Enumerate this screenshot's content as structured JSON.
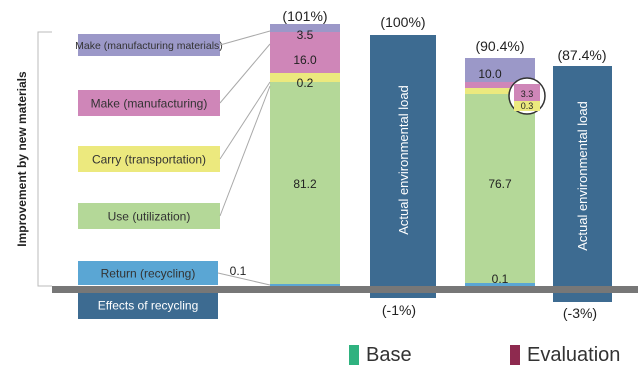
{
  "chart_data": {
    "type": "stacked-bar",
    "ylabel": "Improvement by new materials",
    "stage_labels": [
      "Make (manufacturing materials)",
      "Make (manufacturing)",
      "Carry (transportation)",
      "Use (utilization)",
      "Return (recycling)",
      "Effects of recycling"
    ],
    "stage_colors": [
      "#9b98c8",
      "#cf86b8",
      "#ece97e",
      "#b4d898",
      "#5aa6d4",
      "#3d6b91"
    ],
    "bars": [
      {
        "group": "Base",
        "kind": "stacked",
        "total_label": "(101%)",
        "segments": [
          {
            "stage": "Return (recycling)",
            "value": 0.1,
            "label": "0.1"
          },
          {
            "stage": "Use (utilization)",
            "value": 81.2,
            "label": "81.2"
          },
          {
            "stage": "Carry (transportation)",
            "value": 0.2,
            "label": "0.2"
          },
          {
            "stage": "Make (manufacturing)",
            "value": 16.0,
            "label": "16.0"
          },
          {
            "stage": "Make (manufacturing materials)",
            "value": 3.5,
            "label": "3.5"
          }
        ]
      },
      {
        "group": "Base",
        "kind": "total",
        "label": "Actual environmental load",
        "value": 100,
        "total_label": "(100%)",
        "recycling_effect": "(-1%)"
      },
      {
        "group": "Evaluation",
        "kind": "stacked",
        "total_label": "(90.4%)",
        "segments": [
          {
            "stage": "Return (recycling)",
            "value": 0.1,
            "label": "0.1"
          },
          {
            "stage": "Use (utilization)",
            "value": 76.7,
            "label": "76.7"
          },
          {
            "stage": "Carry (transportation)",
            "value": 0.3,
            "label": "0.3"
          },
          {
            "stage": "Make (manufacturing)",
            "value": 3.3,
            "label": "3.3"
          },
          {
            "stage": "Make (manufacturing materials)",
            "value": 10.0,
            "label": "10.0"
          }
        ]
      },
      {
        "group": "Evaluation",
        "kind": "total",
        "label": "Actual environmental load",
        "value": 87.4,
        "total_label": "(87.4%)",
        "recycling_effect": "(-3%)"
      }
    ],
    "legend": [
      {
        "name": "Base",
        "color": "#2fb27f"
      },
      {
        "name": "Evaluation",
        "color": "#8e2a4f"
      }
    ],
    "colors": {
      "total_bar": "#3d6b91",
      "baseline": "#777777",
      "connector": "#a9a9a9"
    }
  }
}
